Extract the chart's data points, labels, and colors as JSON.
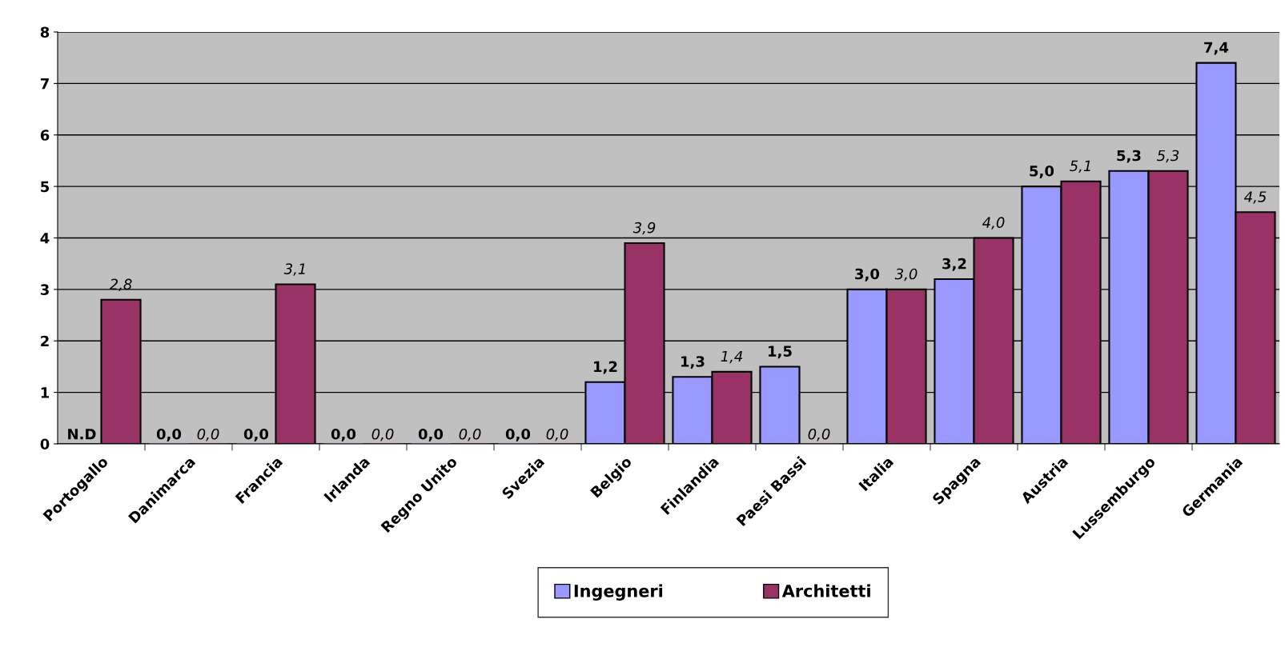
{
  "chart_data": {
    "type": "bar",
    "categories": [
      "Portogallo",
      "Danimarca",
      "Francia",
      "Irlanda",
      "Regno Unito",
      "Svezia",
      "Belgio",
      "Finlandia",
      "Paesi Bassi",
      "Italia",
      "Spagna",
      "Austria",
      "Lussemburgo",
      "Germania"
    ],
    "series": [
      {
        "name": "Ingegneri",
        "color": "#9999ff",
        "values": [
          null,
          0,
          0,
          0,
          0,
          0,
          1.2,
          1.3,
          1.5,
          3.0,
          3.2,
          5.0,
          5.3,
          7.4
        ],
        "value_labels": [
          "N.D",
          "0,0",
          "0,0",
          "0,0",
          "0,0",
          "0,0",
          "1,2",
          "1,3",
          "1,5",
          "3,0",
          "3,2",
          "5,0",
          "5,3",
          "7,4"
        ]
      },
      {
        "name": "Architetti",
        "color": "#993366",
        "values": [
          2.8,
          0,
          3.1,
          0,
          0,
          0,
          3.9,
          1.4,
          0,
          3.0,
          4.0,
          5.1,
          5.3,
          4.5
        ],
        "value_labels": [
          "2,8",
          "0,0",
          "3,1",
          "0,0",
          "0,0",
          "0,0",
          "3,9",
          "1,4",
          "0,0",
          "3,0",
          "4,0",
          "5,1",
          "5,3",
          "4,5"
        ]
      }
    ],
    "ylim": [
      0,
      8
    ],
    "yticks": [
      0,
      1,
      2,
      3,
      4,
      5,
      6,
      7,
      8
    ],
    "grid": "y",
    "legend": "bottom"
  }
}
